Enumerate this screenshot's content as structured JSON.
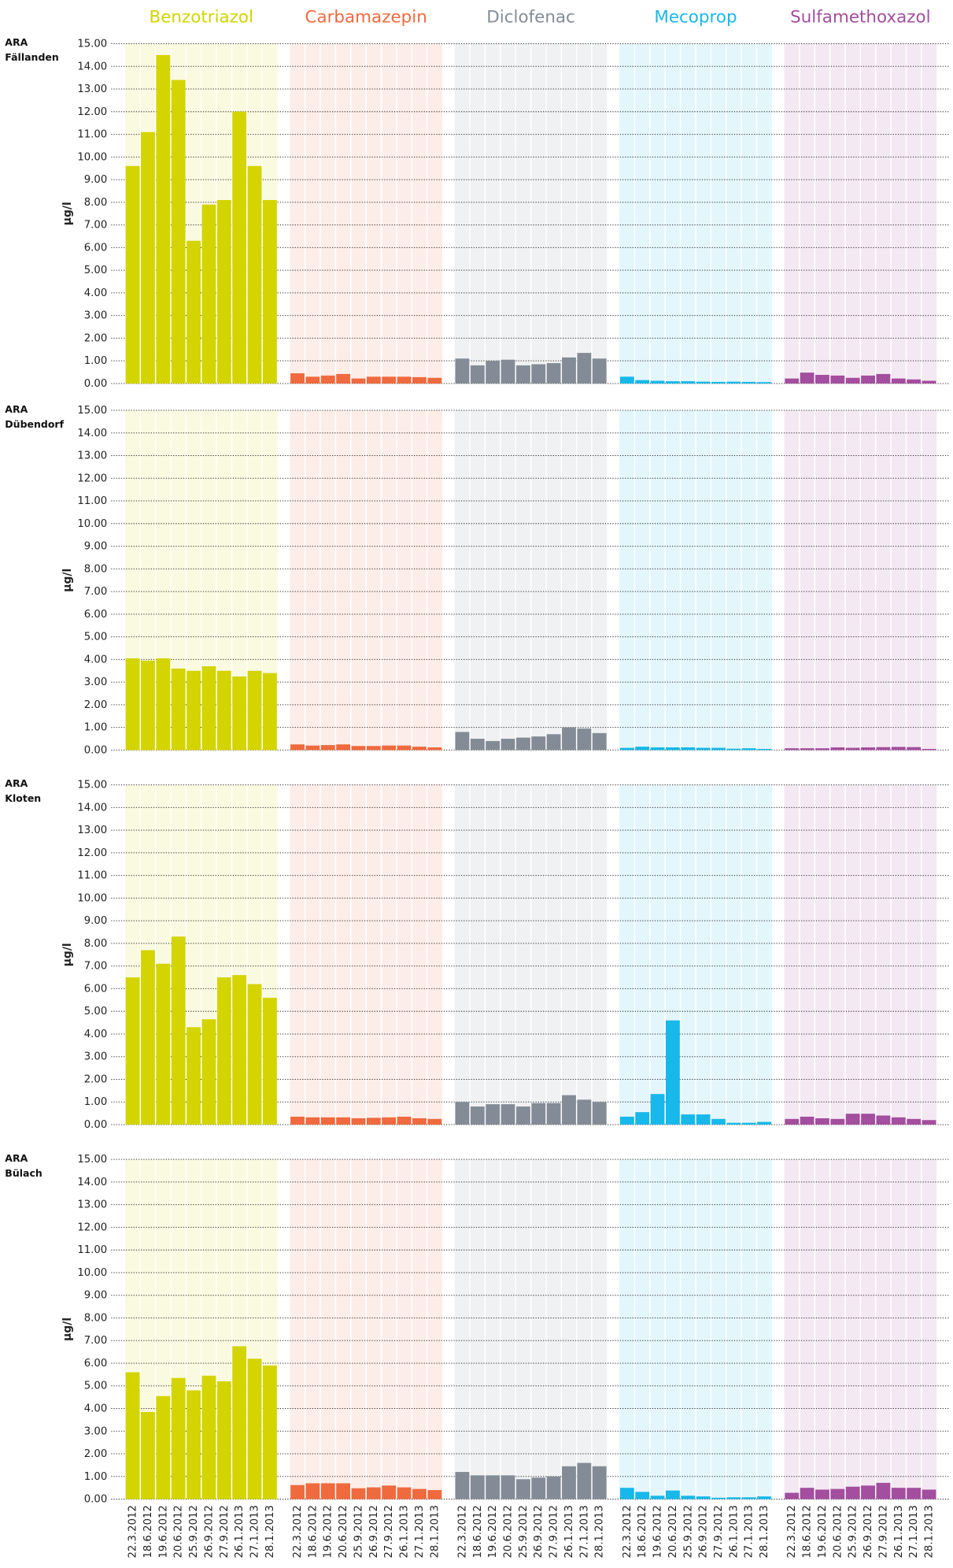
{
  "chart_data": {
    "type": "bar",
    "ylabel": "µg/l",
    "categories": [
      "22.3.2012",
      "18.6.2012",
      "19.6.2012",
      "20.6.2012",
      "25.9.2012",
      "26.9.2012",
      "27.9.2012",
      "26.1.2013",
      "27.1.2013",
      "28.1.2013"
    ],
    "ylim": [
      0,
      15
    ],
    "yticks": [
      {
        "value": 0,
        "label": "0.00"
      },
      {
        "value": 1,
        "label": "1.00"
      },
      {
        "value": 2,
        "label": "2.00"
      },
      {
        "value": 3,
        "label": "3.00"
      },
      {
        "value": 4,
        "label": "4.00"
      },
      {
        "value": 5,
        "label": "5.00"
      },
      {
        "value": 6,
        "label": "6.00"
      },
      {
        "value": 7,
        "label": "7.00"
      },
      {
        "value": 8,
        "label": "8.00"
      },
      {
        "value": 9,
        "label": "9.00"
      },
      {
        "value": 10,
        "label": "10.00"
      },
      {
        "value": 11,
        "label": "11.00"
      },
      {
        "value": 12,
        "label": "12.00"
      },
      {
        "value": 13,
        "label": "13.00"
      },
      {
        "value": 14,
        "label": "14.00"
      },
      {
        "value": 15,
        "label": "15.00"
      }
    ],
    "grid": true,
    "series": [
      {
        "name": "Benzotriazol",
        "color": "#d4d400"
      },
      {
        "name": "Carbamazepin",
        "color": "#ef6a3e"
      },
      {
        "name": "Diclofenac",
        "color": "#838c96"
      },
      {
        "name": "Mecoprop",
        "color": "#18b8ea"
      },
      {
        "name": "Sulfamethoxazol",
        "color": "#a34e9e"
      }
    ],
    "panels": [
      {
        "title": "ARA Fällanden",
        "values": [
          [
            9.6,
            11.1,
            14.5,
            13.4,
            6.3,
            7.9,
            8.1,
            12.0,
            9.6,
            8.1
          ],
          [
            0.45,
            0.3,
            0.35,
            0.42,
            0.22,
            0.3,
            0.3,
            0.3,
            0.28,
            0.25
          ],
          [
            1.1,
            0.8,
            1.0,
            1.05,
            0.8,
            0.85,
            0.9,
            1.15,
            1.35,
            1.1
          ],
          [
            0.3,
            0.15,
            0.12,
            0.1,
            0.1,
            0.08,
            0.07,
            0.08,
            0.07,
            0.06
          ],
          [
            0.22,
            0.48,
            0.38,
            0.35,
            0.25,
            0.35,
            0.42,
            0.22,
            0.18,
            0.12
          ]
        ]
      },
      {
        "title": "ARA Dübendorf",
        "values": [
          [
            4.05,
            3.95,
            4.05,
            3.6,
            3.5,
            3.7,
            3.5,
            3.25,
            3.5,
            3.4
          ],
          [
            0.25,
            0.2,
            0.22,
            0.25,
            0.18,
            0.18,
            0.2,
            0.2,
            0.15,
            0.12
          ],
          [
            0.8,
            0.5,
            0.4,
            0.5,
            0.55,
            0.6,
            0.7,
            1.0,
            0.95,
            0.75
          ],
          [
            0.1,
            0.15,
            0.12,
            0.12,
            0.12,
            0.1,
            0.1,
            0.06,
            0.08,
            0.05
          ],
          [
            0.08,
            0.08,
            0.08,
            0.12,
            0.1,
            0.12,
            0.13,
            0.14,
            0.13,
            0.05
          ]
        ]
      },
      {
        "title": "ARA Kloten",
        "values": [
          [
            6.5,
            7.7,
            7.1,
            8.3,
            4.3,
            4.65,
            6.5,
            6.6,
            6.2,
            5.6
          ],
          [
            0.35,
            0.32,
            0.32,
            0.32,
            0.28,
            0.3,
            0.32,
            0.35,
            0.28,
            0.25
          ],
          [
            1.0,
            0.8,
            0.9,
            0.9,
            0.8,
            0.95,
            0.95,
            1.3,
            1.1,
            1.0
          ],
          [
            0.35,
            0.55,
            1.35,
            4.6,
            0.45,
            0.45,
            0.25,
            0.08,
            0.08,
            0.12
          ],
          [
            0.25,
            0.35,
            0.28,
            0.25,
            0.48,
            0.48,
            0.4,
            0.32,
            0.25,
            0.2
          ]
        ]
      },
      {
        "title": "ARA Bülach",
        "values": [
          [
            5.6,
            3.85,
            4.55,
            5.35,
            4.8,
            5.45,
            5.2,
            6.75,
            6.2,
            5.9
          ],
          [
            0.62,
            0.7,
            0.7,
            0.7,
            0.48,
            0.52,
            0.6,
            0.52,
            0.45,
            0.4
          ],
          [
            1.2,
            1.05,
            1.05,
            1.05,
            0.88,
            0.95,
            1.0,
            1.45,
            1.6,
            1.45
          ],
          [
            0.5,
            0.32,
            0.15,
            0.38,
            0.15,
            0.12,
            0.06,
            0.08,
            0.08,
            0.12
          ],
          [
            0.28,
            0.5,
            0.42,
            0.45,
            0.55,
            0.6,
            0.72,
            0.5,
            0.5,
            0.42
          ]
        ]
      }
    ]
  }
}
